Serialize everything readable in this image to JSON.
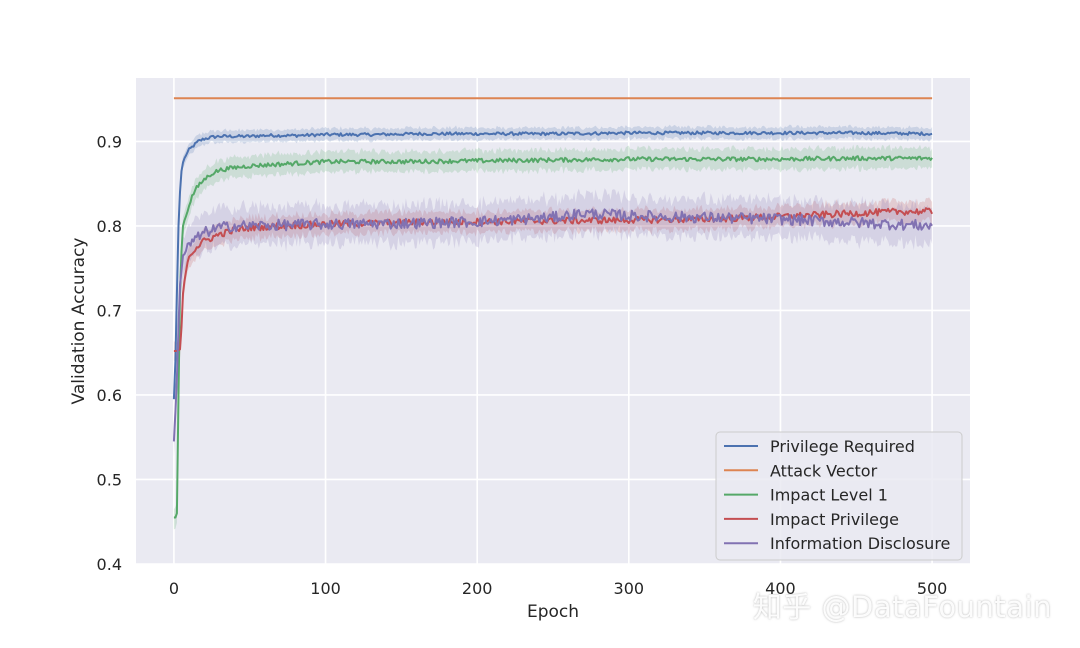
{
  "chart_data": {
    "type": "line",
    "xlabel": "Epoch",
    "ylabel": "Validation Accuracy",
    "xlim": [
      -25,
      525
    ],
    "ylim": [
      0.4,
      0.975
    ],
    "xticks": [
      0,
      100,
      200,
      300,
      400,
      500
    ],
    "yticks": [
      0.4,
      0.5,
      0.6,
      0.7,
      0.8,
      0.9
    ],
    "grid": true,
    "legend_position": "lower right",
    "series": [
      {
        "name": "Privilege Required",
        "color": "#4c72b0",
        "x": [
          0,
          1,
          2,
          3,
          4,
          5,
          6,
          8,
          10,
          13,
          16,
          20,
          25,
          30,
          40,
          50,
          60,
          80,
          100,
          130,
          160,
          200,
          250,
          300,
          350,
          400,
          450,
          500
        ],
        "y": [
          0.595,
          0.64,
          0.72,
          0.8,
          0.84,
          0.865,
          0.875,
          0.884,
          0.89,
          0.895,
          0.9,
          0.903,
          0.905,
          0.906,
          0.906,
          0.906,
          0.907,
          0.907,
          0.908,
          0.908,
          0.909,
          0.909,
          0.909,
          0.91,
          0.91,
          0.91,
          0.91,
          0.909
        ],
        "band": 0.007
      },
      {
        "name": "Attack Vector",
        "color": "#dd8452",
        "x": [
          0,
          500
        ],
        "y": [
          0.951,
          0.951
        ],
        "band": 0
      },
      {
        "name": "Impact Level 1",
        "color": "#55a868",
        "x": [
          0,
          1,
          2,
          3,
          4,
          5,
          6,
          8,
          10,
          12,
          15,
          20,
          25,
          30,
          40,
          50,
          60,
          80,
          100,
          150,
          200,
          250,
          300,
          350,
          400,
          450,
          500
        ],
        "y": [
          0.455,
          0.455,
          0.46,
          0.6,
          0.72,
          0.77,
          0.8,
          0.812,
          0.825,
          0.835,
          0.845,
          0.855,
          0.862,
          0.866,
          0.869,
          0.871,
          0.872,
          0.874,
          0.876,
          0.876,
          0.877,
          0.878,
          0.879,
          0.879,
          0.879,
          0.88,
          0.88
        ],
        "band": 0.012
      },
      {
        "name": "Impact Privilege",
        "color": "#c44e52",
        "x": [
          0,
          2,
          4,
          5,
          6,
          8,
          10,
          15,
          20,
          30,
          40,
          50,
          70,
          100,
          150,
          200,
          250,
          300,
          350,
          400,
          450,
          480,
          500
        ],
        "y": [
          0.652,
          0.652,
          0.654,
          0.68,
          0.72,
          0.75,
          0.765,
          0.775,
          0.782,
          0.79,
          0.795,
          0.798,
          0.8,
          0.802,
          0.804,
          0.805,
          0.806,
          0.807,
          0.808,
          0.811,
          0.815,
          0.817,
          0.817
        ],
        "band": 0.012
      },
      {
        "name": "Information Disclosure",
        "color": "#8172b2",
        "x": [
          0,
          1,
          2,
          3,
          4,
          6,
          8,
          10,
          15,
          20,
          30,
          40,
          50,
          70,
          100,
          150,
          200,
          250,
          270,
          300,
          350,
          400,
          450,
          500
        ],
        "y": [
          0.545,
          0.58,
          0.62,
          0.68,
          0.73,
          0.765,
          0.77,
          0.778,
          0.785,
          0.792,
          0.798,
          0.8,
          0.8,
          0.801,
          0.802,
          0.803,
          0.805,
          0.81,
          0.815,
          0.812,
          0.81,
          0.808,
          0.804,
          0.8
        ],
        "band": 0.022
      }
    ]
  },
  "watermark": "知乎 @DataFountain"
}
